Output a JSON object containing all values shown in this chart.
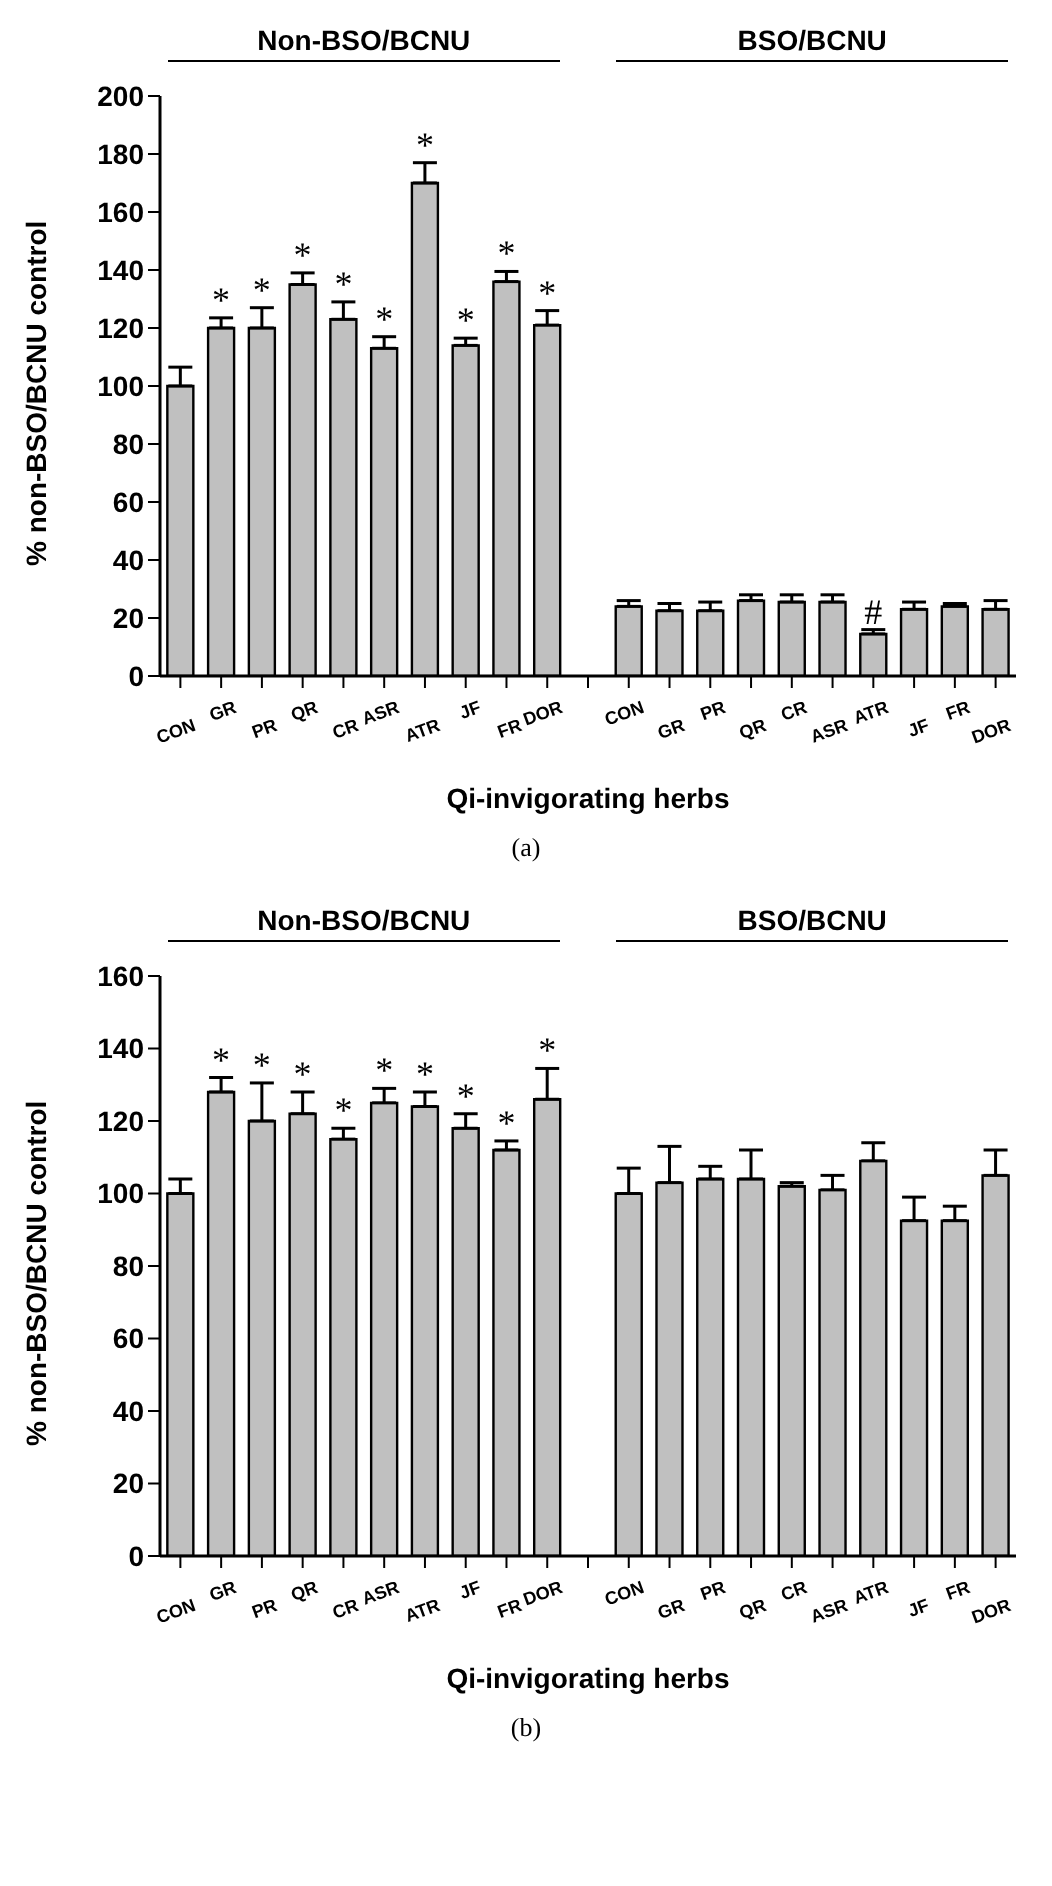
{
  "chart_data": [
    {
      "type": "bar",
      "xlabel": "Qi-invigorating herbs",
      "ylabel": "% non-BSO/BCNU control",
      "categories": [
        "CON",
        "GR",
        "PR",
        "QR",
        "CR",
        "ASR",
        "ATR",
        "JF",
        "FR",
        "DOR",
        null,
        "CON",
        "GR",
        "PR",
        "QR",
        "CR",
        "ASR",
        "ATR",
        "JF",
        "FR",
        "DOR"
      ],
      "values": [
        100,
        120,
        120,
        135,
        123,
        113,
        170,
        114,
        136,
        121,
        null,
        24,
        22.5,
        22.5,
        26,
        25.5,
        25.5,
        14.5,
        23,
        24,
        23
      ],
      "errors": [
        [
          100,
          106.5
        ],
        [
          120,
          123.5
        ],
        [
          120,
          127
        ],
        [
          135,
          139
        ],
        [
          123,
          129
        ],
        [
          113,
          117
        ],
        [
          170,
          177
        ],
        [
          114,
          116.5
        ],
        [
          136,
          139.5
        ],
        [
          121,
          126
        ],
        null,
        [
          24,
          26
        ],
        [
          22.5,
          25
        ],
        [
          22.5,
          25.5
        ],
        [
          26,
          28
        ],
        [
          25.5,
          28
        ],
        [
          25.5,
          28
        ],
        [
          14.5,
          16
        ],
        [
          23,
          25.5
        ],
        [
          24,
          25
        ],
        [
          23,
          26
        ]
      ],
      "value_labels": [
        null,
        "*",
        "*",
        "*",
        "*",
        "*",
        "*",
        "*",
        "*",
        "*",
        null,
        null,
        null,
        null,
        null,
        null,
        null,
        "#",
        null,
        null,
        null
      ],
      "color": "#c0c0c0",
      "ylim": [
        0,
        200
      ],
      "yticks": [
        0,
        20,
        40,
        60,
        80,
        100,
        120,
        140,
        160,
        180,
        200
      ],
      "annotations": [
        "Non-BSO/BCNU",
        "BSO/BCNU",
        "(a)"
      ]
    },
    {
      "type": "bar",
      "xlabel": "Qi-invigorating herbs",
      "ylabel": "% non-BSO/BCNU control",
      "categories": [
        "CON",
        "GR",
        "PR",
        "QR",
        "CR",
        "ASR",
        "ATR",
        "JF",
        "FR",
        "DOR",
        null,
        "CON",
        "GR",
        "PR",
        "QR",
        "CR",
        "ASR",
        "ATR",
        "JF",
        "FR",
        "DOR"
      ],
      "values": [
        100,
        128,
        120,
        122,
        115,
        125,
        124,
        118,
        112,
        126,
        null,
        100,
        103,
        104,
        104,
        102,
        101,
        109,
        92.5,
        92.5,
        105
      ],
      "errors": [
        [
          100,
          104
        ],
        [
          128,
          132
        ],
        [
          120,
          130.5
        ],
        [
          122,
          128
        ],
        [
          115,
          118
        ],
        [
          125,
          129
        ],
        [
          124,
          128
        ],
        [
          118,
          122
        ],
        [
          112,
          114.5
        ],
        [
          126,
          134.5
        ],
        null,
        [
          100,
          107
        ],
        [
          103,
          113
        ],
        [
          104,
          107.5
        ],
        [
          104,
          112
        ],
        [
          102,
          103
        ],
        [
          101,
          105
        ],
        [
          109,
          114
        ],
        [
          92.5,
          99
        ],
        [
          92.5,
          96.5
        ],
        [
          105,
          112
        ]
      ],
      "value_labels": [
        null,
        "*",
        "*",
        "*",
        "*",
        "*",
        "*",
        "*",
        "*",
        "*",
        null,
        null,
        null,
        null,
        null,
        null,
        null,
        null,
        null,
        null,
        null
      ],
      "color": "#c0c0c0",
      "ylim": [
        0,
        160
      ],
      "yticks": [
        0,
        20,
        40,
        60,
        80,
        100,
        120,
        140,
        160
      ],
      "annotations": [
        "Non-BSO/BCNU",
        "BSO/BCNU",
        "(b)"
      ]
    }
  ]
}
